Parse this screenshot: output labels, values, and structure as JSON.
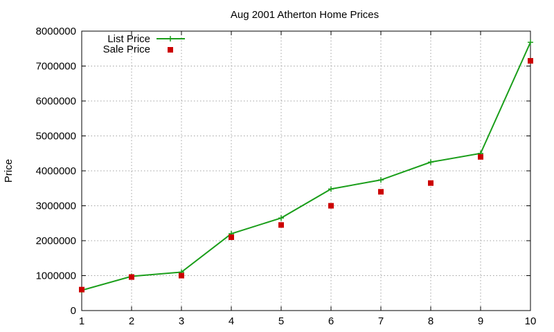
{
  "chart_data": {
    "type": "line",
    "title": "Aug 2001 Atherton Home Prices",
    "xlabel": "",
    "ylabel": "Price",
    "xlim": [
      1,
      10
    ],
    "ylim": [
      0,
      8000000
    ],
    "x_ticks": [
      "1",
      "2",
      "3",
      "4",
      "5",
      "6",
      "7",
      "8",
      "9",
      "10"
    ],
    "y_ticks": [
      "0",
      "1000000",
      "2000000",
      "3000000",
      "4000000",
      "5000000",
      "6000000",
      "7000000",
      "8000000"
    ],
    "grid": true,
    "legend_position": "top-left",
    "series": [
      {
        "name": "List Price",
        "style": "line+cross",
        "color": "#1a9e1a",
        "x": [
          1,
          2,
          3,
          4,
          5,
          6,
          7,
          8,
          9,
          10
        ],
        "values": [
          580000,
          980000,
          1100000,
          2200000,
          2650000,
          3480000,
          3740000,
          4250000,
          4500000,
          7680000
        ]
      },
      {
        "name": "Sale Price",
        "style": "square-marker",
        "color": "#cc0000",
        "x": [
          1,
          2,
          3,
          4,
          5,
          6,
          7,
          8,
          9,
          10
        ],
        "values": [
          600000,
          960000,
          1000000,
          2100000,
          2450000,
          3000000,
          3400000,
          3650000,
          4400000,
          7150000
        ]
      }
    ]
  }
}
